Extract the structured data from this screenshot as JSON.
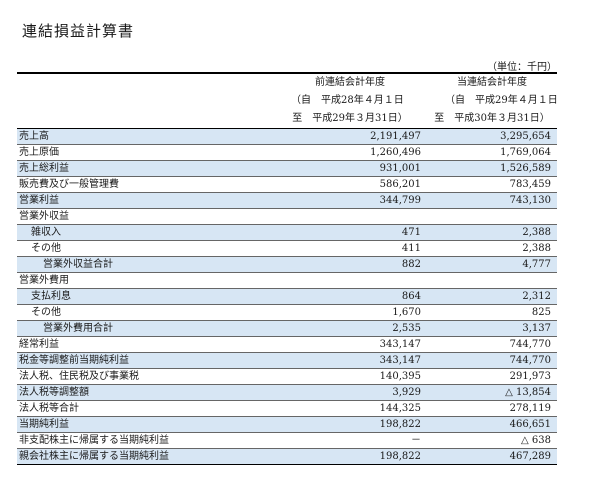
{
  "title": "連結損益計算書",
  "unit_note": "（単位：千円）",
  "header": {
    "prev": {
      "heading": "前連結会計年度",
      "from": "（自　平成28年４月１日",
      "to": "至　平成29年３月31日）"
    },
    "curr": {
      "heading": "当連結会計年度",
      "from": "（自　平成29年４月１日",
      "to": "至　平成30年３月31日）"
    }
  },
  "rows": [
    {
      "label": "売上高",
      "prev": "2,191,497",
      "curr": "3,295,654",
      "indent": 0,
      "highlight": true
    },
    {
      "label": "売上原価",
      "prev": "1,260,496",
      "curr": "1,769,064",
      "indent": 0,
      "highlight": false
    },
    {
      "label": "売上総利益",
      "prev": "931,001",
      "curr": "1,526,589",
      "indent": 0,
      "highlight": true
    },
    {
      "label": "販売費及び一般管理費",
      "prev": "586,201",
      "curr": "783,459",
      "indent": 0,
      "highlight": false
    },
    {
      "label": "営業利益",
      "prev": "344,799",
      "curr": "743,130",
      "indent": 0,
      "highlight": true
    },
    {
      "label": "営業外収益",
      "prev": "",
      "curr": "",
      "indent": 0,
      "highlight": false
    },
    {
      "label": "雑収入",
      "prev": "471",
      "curr": "2,388",
      "indent": 1,
      "highlight": true
    },
    {
      "label": "その他",
      "prev": "411",
      "curr": "2,388",
      "indent": 1,
      "highlight": false
    },
    {
      "label": "営業外収益合計",
      "prev": "882",
      "curr": "4,777",
      "indent": 2,
      "highlight": true
    },
    {
      "label": "営業外費用",
      "prev": "",
      "curr": "",
      "indent": 0,
      "highlight": false
    },
    {
      "label": "支払利息",
      "prev": "864",
      "curr": "2,312",
      "indent": 1,
      "highlight": true
    },
    {
      "label": "その他",
      "prev": "1,670",
      "curr": "825",
      "indent": 1,
      "highlight": false
    },
    {
      "label": "営業外費用合計",
      "prev": "2,535",
      "curr": "3,137",
      "indent": 2,
      "highlight": true
    },
    {
      "label": "経常利益",
      "prev": "343,147",
      "curr": "744,770",
      "indent": 0,
      "highlight": false
    },
    {
      "label": "税金等調整前当期純利益",
      "prev": "343,147",
      "curr": "744,770",
      "indent": 0,
      "highlight": true
    },
    {
      "label": "法人税、住民税及び事業税",
      "prev": "140,395",
      "curr": "291,973",
      "indent": 0,
      "highlight": false
    },
    {
      "label": "法人税等調整額",
      "prev": "3,929",
      "curr": "△ 13,854",
      "indent": 0,
      "highlight": true
    },
    {
      "label": "法人税等合計",
      "prev": "144,325",
      "curr": "278,119",
      "indent": 0,
      "highlight": false
    },
    {
      "label": "当期純利益",
      "prev": "198,822",
      "curr": "466,651",
      "indent": 0,
      "highlight": true
    },
    {
      "label": "非支配株主に帰属する当期純利益",
      "prev": "－",
      "curr": "△ 638",
      "indent": 0,
      "highlight": false
    },
    {
      "label": "親会社株主に帰属する当期純利益",
      "prev": "198,822",
      "curr": "467,289",
      "indent": 0,
      "highlight": true
    }
  ]
}
